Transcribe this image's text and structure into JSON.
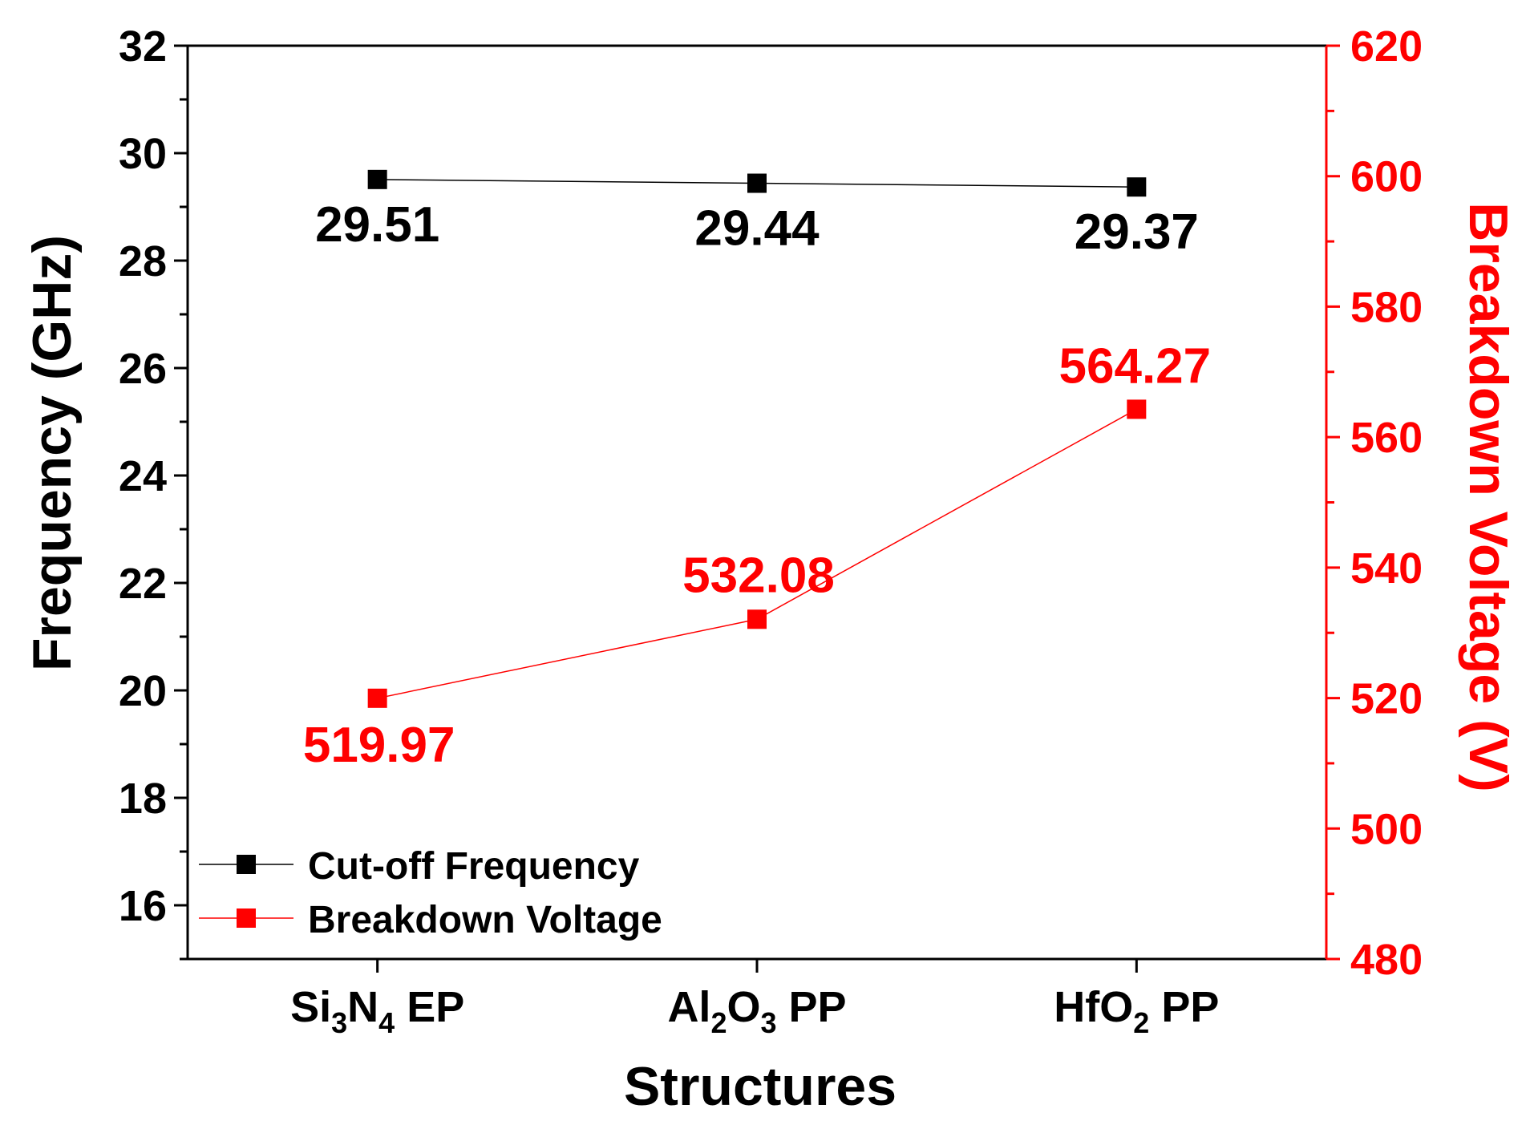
{
  "colors": {
    "left_series": "#000000",
    "right_series": "#ff0000",
    "background": "#ffffff"
  },
  "chart_data": {
    "type": "line",
    "xlabel": "Structures",
    "categories": [
      {
        "parts": [
          {
            "t": "Si"
          },
          {
            "t": "3",
            "sub": true
          },
          {
            "t": "N"
          },
          {
            "t": "4",
            "sub": true
          },
          {
            "t": " EP"
          }
        ]
      },
      {
        "parts": [
          {
            "t": "Al"
          },
          {
            "t": "2",
            "sub": true
          },
          {
            "t": "O"
          },
          {
            "t": "3",
            "sub": true
          },
          {
            "t": " PP"
          }
        ]
      },
      {
        "parts": [
          {
            "t": "HfO"
          },
          {
            "t": "2",
            "sub": true
          },
          {
            "t": " PP"
          }
        ]
      }
    ],
    "y_left": {
      "label": "Frequency (GHz)",
      "range": [
        15,
        32
      ],
      "ticks": [
        "16",
        "18",
        "20",
        "22",
        "24",
        "26",
        "28",
        "30",
        "32"
      ]
    },
    "y_right": {
      "label": "Breakdown Voltage (V)",
      "range": [
        480,
        620
      ],
      "ticks": [
        "480",
        "500",
        "520",
        "540",
        "560",
        "580",
        "600",
        "620"
      ]
    },
    "series": [
      {
        "name": "Cut-off Frequency",
        "axis": "left",
        "color": "#000000",
        "marker": "square",
        "values": [
          29.51,
          29.44,
          29.37
        ],
        "labels": [
          "29.51",
          "29.44",
          "29.37"
        ]
      },
      {
        "name": "Breakdown Voltage",
        "axis": "right",
        "color": "#ff0000",
        "marker": "square",
        "values": [
          519.97,
          532.08,
          564.27
        ],
        "labels": [
          "519.97",
          "532.08",
          "564.27"
        ]
      }
    ],
    "legend": {
      "placement": "bottom-left"
    },
    "grid": false
  }
}
